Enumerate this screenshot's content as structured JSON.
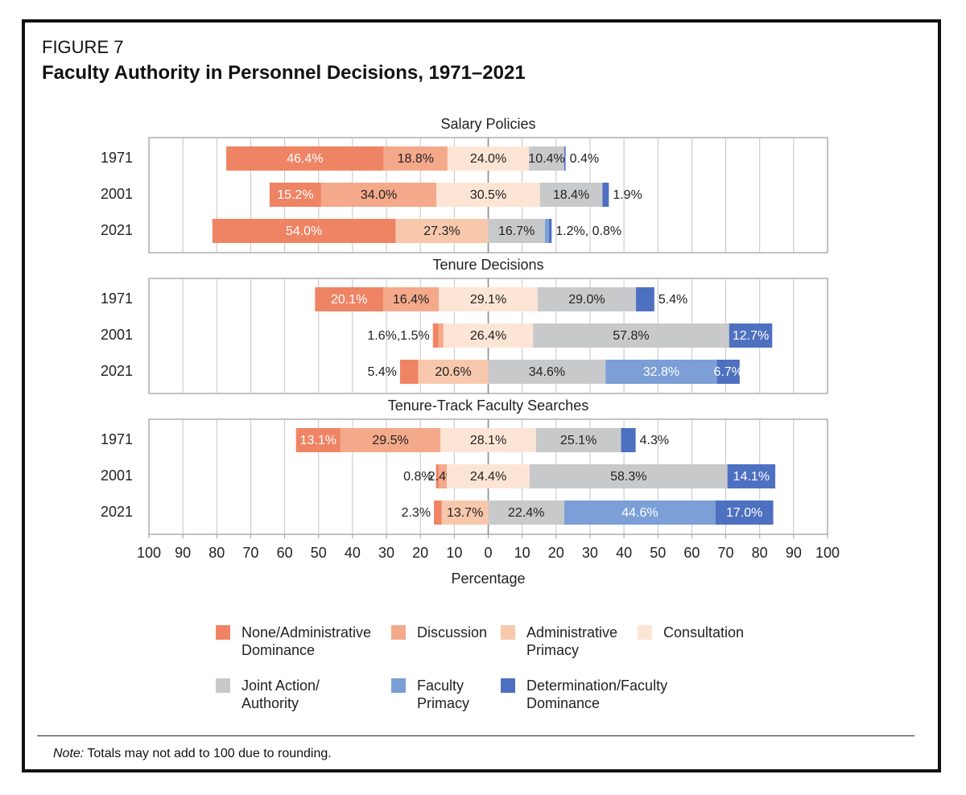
{
  "figure_label": "FIGURE 7",
  "title": "Faculty Authority in Personnel Decisions, 1971–2021",
  "note_prefix": "Note:",
  "note_text": " Totals may not add to 100 due to rounding.",
  "colors": {
    "none": "#ef8465",
    "discussion": "#f4a98a",
    "admin_primacy": "#f8c8ac",
    "consultation": "#fde5d6",
    "joint": "#c8c9cb",
    "faculty_primacy": "#7b9fd6",
    "determination": "#4e70c0"
  },
  "chart_data": {
    "type": "bar",
    "orientation": "horizontal-diverging",
    "xlabel": "Percentage",
    "xticks": [
      "100",
      "90",
      "80",
      "70",
      "60",
      "50",
      "40",
      "30",
      "20",
      "10",
      "0",
      "10",
      "20",
      "30",
      "40",
      "50",
      "60",
      "70",
      "80",
      "90",
      "100"
    ],
    "xlim": [
      -100,
      100
    ],
    "grid": true,
    "legend_position": "bottom",
    "categories": [
      "None/Administrative Dominance",
      "Discussion",
      "Administrative Primacy",
      "Consultation",
      "Joint Action/ Authority",
      "Faculty Primacy",
      "Determination/Faculty Dominance"
    ],
    "legend": [
      {
        "key": "none",
        "label": "None/Administrative\nDominance"
      },
      {
        "key": "discussion",
        "label": "Discussion"
      },
      {
        "key": "admin_primacy",
        "label": "Administrative\nPrimacy"
      },
      {
        "key": "consultation",
        "label": "Consultation"
      },
      {
        "key": "joint",
        "label": "Joint Action/\nAuthority"
      },
      {
        "key": "faculty_primacy",
        "label": "Faculty\nPrimacy"
      },
      {
        "key": "determination",
        "label": "Determination/Faculty\nDominance"
      }
    ],
    "panels": [
      {
        "title": "Salary Policies",
        "rows": [
          {
            "year": "1971",
            "values": [
              46.4,
              18.8,
              0,
              24.0,
              10.4,
              0,
              0.4
            ],
            "labels": [
              {
                "text": "46.4%",
                "white": true
              },
              {
                "text": "18.8%"
              },
              null,
              {
                "text": "24.0%"
              },
              {
                "text": "10.4%"
              },
              null,
              null
            ],
            "outside": "0.4%"
          },
          {
            "year": "2001",
            "values": [
              15.2,
              34.0,
              0,
              30.5,
              18.4,
              0,
              1.9
            ],
            "labels": [
              {
                "text": "15.2%",
                "white": true
              },
              {
                "text": "34.0%"
              },
              null,
              {
                "text": "30.5%"
              },
              {
                "text": "18.4%"
              },
              null,
              null
            ],
            "outside": "1.9%"
          },
          {
            "year": "2021",
            "values": [
              54.0,
              0,
              27.3,
              0,
              16.7,
              1.2,
              0.8
            ],
            "labels": [
              {
                "text": "54.0%",
                "white": true
              },
              null,
              {
                "text": "27.3%"
              },
              null,
              {
                "text": "16.7%"
              },
              null,
              null
            ],
            "outside": "1.2%, 0.8%"
          }
        ]
      },
      {
        "title": "Tenure Decisions",
        "rows": [
          {
            "year": "1971",
            "values": [
              20.1,
              16.4,
              0,
              29.1,
              29.0,
              0,
              5.4
            ],
            "labels": [
              {
                "text": "20.1%",
                "white": true
              },
              {
                "text": "16.4%"
              },
              null,
              {
                "text": "29.1%"
              },
              {
                "text": "29.0%"
              },
              null,
              null
            ],
            "outside": "5.4%"
          },
          {
            "year": "2001",
            "values": [
              1.6,
              1.5,
              0,
              26.4,
              57.8,
              0,
              12.7
            ],
            "labels": [
              null,
              null,
              null,
              {
                "text": "26.4%"
              },
              {
                "text": "57.8%"
              },
              null,
              {
                "text": "12.7%",
                "white": true
              }
            ],
            "outside_left": "1.6%,1.5%"
          },
          {
            "year": "2021",
            "values": [
              5.4,
              0,
              20.6,
              0,
              34.6,
              32.8,
              6.7
            ],
            "labels": [
              null,
              null,
              {
                "text": "20.6%"
              },
              null,
              {
                "text": "34.6%"
              },
              {
                "text": "32.8%",
                "white": true
              },
              {
                "text": "6.7%",
                "white": true
              }
            ],
            "outside_left": "5.4%"
          }
        ]
      },
      {
        "title": "Tenure-Track Faculty Searches",
        "rows": [
          {
            "year": "1971",
            "values": [
              13.1,
              29.5,
              0,
              28.1,
              25.1,
              0,
              4.3
            ],
            "labels": [
              {
                "text": "13.1%",
                "white": true
              },
              {
                "text": "29.5%"
              },
              null,
              {
                "text": "28.1%"
              },
              {
                "text": "25.1%"
              },
              null,
              null
            ],
            "outside": "4.3%"
          },
          {
            "year": "2001",
            "values": [
              0.8,
              2.4,
              0,
              24.4,
              58.3,
              0,
              14.1
            ],
            "labels": [
              null,
              {
                "text": "2.4%"
              },
              null,
              {
                "text": "24.4%"
              },
              {
                "text": "58.3%"
              },
              null,
              {
                "text": "14.1%",
                "white": true
              }
            ],
            "outside_left": "0.8%"
          },
          {
            "year": "2021",
            "values": [
              2.3,
              0,
              13.7,
              0,
              22.4,
              44.6,
              17.0
            ],
            "labels": [
              null,
              null,
              {
                "text": "13.7%"
              },
              null,
              {
                "text": "22.4%"
              },
              {
                "text": "44.6%",
                "white": true
              },
              {
                "text": "17.0%",
                "white": true
              }
            ],
            "outside_left": "2.3%"
          }
        ]
      }
    ]
  }
}
